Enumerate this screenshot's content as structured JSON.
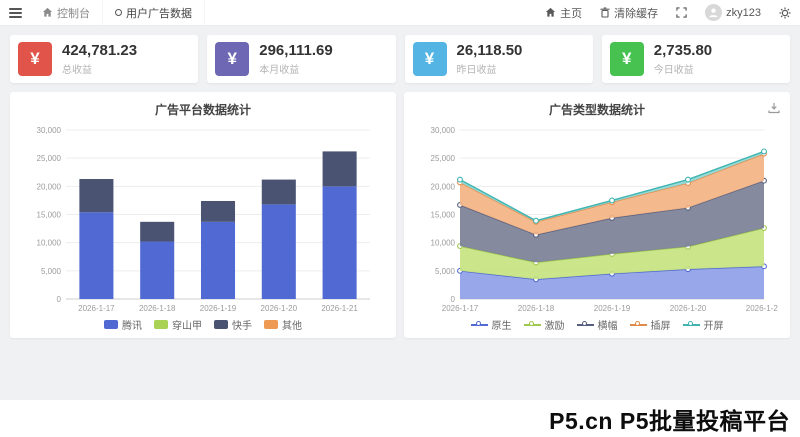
{
  "topbar": {
    "tabs": [
      {
        "label": "控制台"
      },
      {
        "label": "用户广告数据"
      }
    ],
    "right": {
      "home": "主页",
      "clear_cache": "清除缓存",
      "username": "zky123"
    }
  },
  "stats": [
    {
      "icon": "yen-icon",
      "color": "#e0544a",
      "value": "424,781.23",
      "label": "总收益"
    },
    {
      "icon": "yen-icon",
      "color": "#6e68b4",
      "value": "296,111.69",
      "label": "本月收益"
    },
    {
      "icon": "yen-icon",
      "color": "#54b5e4",
      "value": "26,118.50",
      "label": "昨日收益"
    },
    {
      "icon": "yen-icon",
      "color": "#47c251",
      "value": "2,735.80",
      "label": "今日收益"
    }
  ],
  "chart_data": [
    {
      "type": "bar",
      "title": "广告平台数据统计",
      "categories": [
        "2026-1-17",
        "2026-1-18",
        "2026-1-19",
        "2026-1-20",
        "2026-1-21"
      ],
      "series": [
        {
          "name": "腾讯",
          "color": "#5069d3",
          "values": [
            15400,
            10200,
            13700,
            16800,
            20000
          ]
        },
        {
          "name": "穿山甲",
          "color": "#a9d255",
          "values": [
            0,
            0,
            0,
            0,
            0
          ]
        },
        {
          "name": "快手",
          "color": "#4a5372",
          "values": [
            5900,
            3500,
            3700,
            4400,
            6200
          ]
        },
        {
          "name": "其他",
          "color": "#ee9a54",
          "values": [
            0,
            0,
            0,
            0,
            0
          ]
        }
      ],
      "stacked": true,
      "grid": true,
      "ylim": [
        0,
        30000
      ],
      "ytick_step": 5000,
      "legend_position": "bottom"
    },
    {
      "type": "area",
      "title": "广告类型数据统计",
      "categories": [
        "2026-1-17",
        "2026-1-18",
        "2026-1-19",
        "2026-1-20",
        "2026-1-21"
      ],
      "series": [
        {
          "name": "原生",
          "color": "#5069d3",
          "fill": "#8f9fe8",
          "values": [
            5000,
            3500,
            4500,
            5300,
            5800
          ]
        },
        {
          "name": "激励",
          "color": "#9fc94e",
          "fill": "#c5e380",
          "values": [
            4400,
            3000,
            3500,
            4000,
            6800
          ]
        },
        {
          "name": "横幅",
          "color": "#565f7d",
          "fill": "#7b8097",
          "values": [
            7300,
            4900,
            6400,
            6900,
            8400
          ]
        },
        {
          "name": "插屏",
          "color": "#e08b4a",
          "fill": "#f4b384",
          "values": [
            4000,
            2300,
            2800,
            4400,
            4800
          ]
        },
        {
          "name": "开屏",
          "color": "#3fb4b0",
          "fill": "#8fd9d6",
          "values": [
            500,
            200,
            300,
            600,
            400
          ]
        }
      ],
      "stacked": true,
      "markers": true,
      "grid": true,
      "ylim": [
        0,
        30000
      ],
      "ytick_step": 5000,
      "legend_position": "bottom"
    }
  ],
  "footer": {
    "watermark": "P5.cn P5批量投稿平台"
  }
}
